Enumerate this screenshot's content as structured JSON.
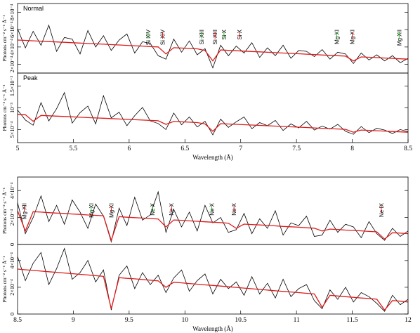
{
  "chart_data": [
    {
      "type": "line",
      "label": "Normal",
      "label_color": "#2323c8",
      "ylabel": "Photons cm⁻² s⁻¹ Å⁻¹",
      "xlim": [
        5,
        8.5
      ],
      "ylim": [
        0.0001,
        0.0009
      ],
      "yticks": [
        {
          "value": 0.0002,
          "label": "2×10⁻⁴"
        },
        {
          "value": 0.0004,
          "label": "4×10⁻⁴"
        },
        {
          "value": 0.0006,
          "label": "6×10⁻⁴"
        },
        {
          "value": 0.0008,
          "label": "8×10⁻⁴"
        }
      ],
      "x": [
        5,
        5.07,
        5.14,
        5.21,
        5.28,
        5.35,
        5.42,
        5.49,
        5.56,
        5.63,
        5.7,
        5.77,
        5.84,
        5.91,
        5.98,
        6.05,
        6.12,
        6.19,
        6.26,
        6.33,
        6.4,
        6.47,
        6.54,
        6.61,
        6.68,
        6.75,
        6.82,
        6.89,
        6.96,
        7.03,
        7.1,
        7.17,
        7.24,
        7.31,
        7.38,
        7.45,
        7.52,
        7.59,
        7.66,
        7.73,
        7.8,
        7.87,
        7.94,
        8.01,
        8.08,
        8.15,
        8.22,
        8.29,
        8.36,
        8.43,
        8.5
      ],
      "series": [
        {
          "color": "#000000",
          "values": [
            0.00061,
            0.00039,
            0.00058,
            0.00042,
            0.00065,
            0.00035,
            0.00051,
            0.00049,
            0.00032,
            0.00059,
            0.0004,
            0.00053,
            0.00036,
            0.00048,
            0.00055,
            0.00033,
            0.00046,
            0.00044,
            0.0003,
            0.00026,
            0.00049,
            0.00034,
            0.00047,
            0.00031,
            0.00038,
            0.00016,
            0.00042,
            0.0003,
            0.00041,
            0.00033,
            0.00045,
            0.00028,
            0.00039,
            0.0003,
            0.00042,
            0.00027,
            0.00036,
            0.00035,
            0.00029,
            0.00037,
            0.00026,
            0.00034,
            0.00032,
            0.00021,
            0.00033,
            0.00025,
            0.00031,
            0.00024,
            0.0003,
            0.00022,
            0.00027
          ]
        },
        {
          "color": "#e01a1a",
          "values": [
            0.00048,
            0.000476,
            0.000471,
            0.000467,
            0.000462,
            0.000458,
            0.000454,
            0.000449,
            0.000445,
            0.00044,
            0.000436,
            0.000432,
            0.000427,
            0.000423,
            0.000418,
            0.000414,
            0.00041,
            0.000405,
            0.000401,
            0.00032,
            0.000392,
            0.000388,
            0.000383,
            0.000379,
            0.00036,
            0.00024,
            0.000366,
            0.000361,
            0.000357,
            0.000352,
            0.000348,
            0.000344,
            0.000339,
            0.000335,
            0.00033,
            0.000326,
            0.000322,
            0.000317,
            0.000313,
            0.000308,
            0.000304,
            0.0003,
            0.000295,
            0.00024,
            0.000286,
            0.000282,
            0.000278,
            0.000273,
            0.000269,
            0.000264,
            0.00026
          ]
        }
      ],
      "annotations": [
        {
          "text": "Si XIV",
          "x": 6.17,
          "color": "#22c022"
        },
        {
          "text": "Si XIV",
          "x": 6.3,
          "color": "#e01a1a"
        },
        {
          "text": "Si XIII",
          "x": 6.65,
          "color": "#22c022"
        },
        {
          "text": "Si XIII",
          "x": 6.77,
          "color": "#e01a1a"
        },
        {
          "text": "Si X",
          "x": 6.85,
          "color": "#22c022"
        },
        {
          "text": "Si X",
          "x": 6.99,
          "color": "#e01a1a"
        },
        {
          "text": "Mg XI",
          "x": 7.86,
          "color": "#22c022"
        },
        {
          "text": "Mg XI",
          "x": 8.0,
          "color": "#e01a1a"
        },
        {
          "text": "Mg XII",
          "x": 8.42,
          "color": "#22c022"
        }
      ]
    },
    {
      "type": "line",
      "label": "Peak",
      "label_color": "#2323c8",
      "ylabel": "Photons cm⁻² s⁻¹ Å⁻¹",
      "xlabel": "Wavelength (Å)",
      "xlim": [
        5,
        8.5
      ],
      "ylim": [
        0.0002,
        0.0018
      ],
      "xticks": [
        5,
        5.5,
        6,
        6.5,
        7,
        7.5,
        8,
        8.5
      ],
      "yticks": [
        {
          "value": 0.0005,
          "label": "5×10⁻⁴"
        },
        {
          "value": 0.001,
          "label": "10⁻³"
        },
        {
          "value": 0.0015,
          "label": "1.5×10⁻³"
        }
      ],
      "x": [
        5,
        5.07,
        5.14,
        5.21,
        5.28,
        5.35,
        5.42,
        5.49,
        5.56,
        5.63,
        5.7,
        5.77,
        5.84,
        5.91,
        5.98,
        6.05,
        6.12,
        6.19,
        6.26,
        6.33,
        6.4,
        6.47,
        6.54,
        6.61,
        6.68,
        6.75,
        6.82,
        6.89,
        6.96,
        7.03,
        7.1,
        7.17,
        7.24,
        7.31,
        7.38,
        7.45,
        7.52,
        7.59,
        7.66,
        7.73,
        7.8,
        7.87,
        7.94,
        8.01,
        8.08,
        8.15,
        8.22,
        8.29,
        8.36,
        8.43,
        8.5
      ],
      "series": [
        {
          "color": "#000000",
          "values": [
            0.00095,
            0.00072,
            0.0006,
            0.00112,
            0.0007,
            0.00098,
            0.00135,
            0.00065,
            0.00089,
            0.00104,
            0.00063,
            0.00128,
            0.00077,
            0.0009,
            0.00059,
            0.00082,
            0.00101,
            0.0007,
            0.00064,
            0.0005,
            0.00088,
            0.00061,
            0.00079,
            0.00056,
            0.00069,
            0.00038,
            0.00074,
            0.00055,
            0.00068,
            0.00079,
            0.00052,
            0.00066,
            0.00059,
            0.00071,
            0.00048,
            0.00063,
            0.00054,
            0.00069,
            0.00049,
            0.00058,
            0.00051,
            0.00062,
            0.00046,
            0.00039,
            0.00057,
            0.00043,
            0.00053,
            0.00049,
            0.00041,
            0.0005,
            0.00045
          ]
        },
        {
          "color": "#e01a1a",
          "values": [
            0.00085,
            0.000842,
            0.00069,
            0.000825,
            0.000817,
            0.000809,
            0.000801,
            0.000793,
            0.000784,
            0.000776,
            0.000768,
            0.00076,
            0.000752,
            0.000743,
            0.000735,
            0.000727,
            0.000719,
            0.000711,
            0.000702,
            0.00062,
            0.000686,
            0.000678,
            0.00067,
            0.000661,
            0.00063,
            0.00046,
            0.000637,
            0.000629,
            0.00062,
            0.000612,
            0.000604,
            0.000596,
            0.000588,
            0.000579,
            0.000571,
            0.000563,
            0.000555,
            0.000547,
            0.000538,
            0.00053,
            0.000522,
            0.000514,
            0.000506,
            0.00044,
            0.000489,
            0.000481,
            0.000473,
            0.000465,
            0.000456,
            0.000448,
            0.00044
          ]
        }
      ]
    },
    {
      "type": "line",
      "ylabel": "Photons cm⁻² s⁻¹ Å⁻¹",
      "xlim": [
        8.5,
        12
      ],
      "ylim": [
        0,
        0.0005
      ],
      "yticks": [
        0,
        {
          "value": 0.0002,
          "label": "2×10⁻⁴"
        },
        {
          "value": 0.0004,
          "label": "4×10⁻⁴"
        }
      ],
      "x": [
        8.5,
        8.57,
        8.64,
        8.71,
        8.78,
        8.85,
        8.92,
        8.99,
        9.06,
        9.13,
        9.2,
        9.27,
        9.34,
        9.41,
        9.48,
        9.55,
        9.62,
        9.69,
        9.76,
        9.83,
        9.9,
        9.97,
        10.04,
        10.11,
        10.18,
        10.25,
        10.32,
        10.39,
        10.46,
        10.53,
        10.6,
        10.67,
        10.74,
        10.81,
        10.88,
        10.95,
        11.02,
        11.09,
        11.16,
        11.23,
        11.3,
        11.37,
        11.44,
        11.51,
        11.58,
        11.65,
        11.72,
        11.79,
        11.86,
        11.93,
        12
      ],
      "series": [
        {
          "color": "#000000",
          "values": [
            0.00031,
            8e-05,
            0.0002,
            0.00036,
            0.00017,
            0.00029,
            0.00015,
            0.00033,
            0.00024,
            0.00012,
            0.0003,
            0.00021,
            2e-05,
            0.00027,
            0.00014,
            0.00035,
            0.00018,
            0.00022,
            0.00039,
            9e-05,
            0.00026,
            0.00013,
            0.00024,
            0.0001,
            0.00029,
            0.00016,
            0.0002,
            9e-05,
            0.00011,
            0.00023,
            8e-05,
            0.00019,
            0.00012,
            0.00025,
            7e-05,
            0.00016,
            0.00014,
            0.00021,
            6e-05,
            7e-05,
            0.00018,
            9e-05,
            0.00015,
            0.00013,
            5e-05,
            0.00017,
            8e-05,
            3e-05,
            0.00012,
            6e-05,
            0.0001
          ]
        },
        {
          "color": "#e01a1a",
          "values": [
            0.00025,
            0.0001,
            0.000243,
            0.00024,
            0.000236,
            0.000233,
            0.00023,
            0.000226,
            0.000223,
            0.000219,
            0.000216,
            0.000213,
            3e-05,
            0.000206,
            0.000202,
            0.000199,
            0.000196,
            0.000192,
            0.000189,
            0.00013,
            0.000182,
            0.000179,
            0.000175,
            0.000172,
            0.000168,
            0.000165,
            0.000162,
            0.000158,
            0.00012,
            0.000151,
            0.000148,
            0.000145,
            0.000141,
            0.000138,
            0.000134,
            0.000131,
            0.000128,
            0.000124,
            0.000121,
            0.0001,
            0.000114,
            0.000111,
            0.000107,
            0.000104,
            0.000101,
            9.7e-05,
            9.4e-05,
            4e-05,
            8.7e-05,
            8.4e-05,
            8e-05
          ]
        }
      ],
      "annotations": [
        {
          "text": "Mg XII",
          "x": 8.56,
          "color": "#e01a1a"
        },
        {
          "text": "Mg XI",
          "x": 9.16,
          "color": "#22c022"
        },
        {
          "text": "Mg XI",
          "x": 9.34,
          "color": "#e01a1a"
        },
        {
          "text": "Ne X",
          "x": 9.71,
          "color": "#22c022"
        },
        {
          "text": "Ne X",
          "x": 9.88,
          "color": "#e01a1a"
        },
        {
          "text": "Ne X",
          "x": 10.24,
          "color": "#22c022"
        },
        {
          "text": "Ne X",
          "x": 10.44,
          "color": "#e01a1a"
        },
        {
          "text": "Ne IX",
          "x": 11.76,
          "color": "#e01a1a"
        }
      ]
    },
    {
      "type": "line",
      "ylabel": "Photons cm⁻² s⁻¹ Å⁻¹",
      "xlabel": "Wavelength (Å)",
      "xlim": [
        8.5,
        12
      ],
      "ylim": [
        0,
        0.00052
      ],
      "xticks": [
        8.5,
        9,
        9.5,
        10,
        10.5,
        11,
        11.5,
        12
      ],
      "yticks": [
        0,
        {
          "value": 0.0002,
          "label": "2×10⁻⁴"
        },
        {
          "value": 0.0004,
          "label": "4×10⁻⁴"
        }
      ],
      "x": [
        8.5,
        8.57,
        8.64,
        8.71,
        8.78,
        8.85,
        8.92,
        8.99,
        9.06,
        9.13,
        9.2,
        9.27,
        9.34,
        9.41,
        9.48,
        9.55,
        9.62,
        9.69,
        9.76,
        9.83,
        9.9,
        9.97,
        10.04,
        10.11,
        10.18,
        10.25,
        10.32,
        10.39,
        10.46,
        10.53,
        10.6,
        10.67,
        10.74,
        10.81,
        10.88,
        10.95,
        11.02,
        11.09,
        11.16,
        11.23,
        11.3,
        11.37,
        11.44,
        11.51,
        11.58,
        11.65,
        11.72,
        11.79,
        11.86,
        11.93,
        12
      ],
      "series": [
        {
          "color": "#000000",
          "values": [
            0.00043,
            0.00025,
            0.00038,
            0.00046,
            0.00022,
            0.00034,
            0.00049,
            0.00026,
            0.00031,
            0.0004,
            0.00024,
            0.00033,
            3e-05,
            0.00029,
            0.00036,
            0.00019,
            0.00031,
            0.00022,
            0.00029,
            0.00016,
            0.00027,
            0.00033,
            0.00017,
            0.00025,
            0.0003,
            0.00015,
            0.00026,
            0.00019,
            0.00024,
            0.00014,
            0.00028,
            0.00015,
            0.00023,
            0.00012,
            0.00026,
            0.00013,
            0.00019,
            0.00022,
            0.0001,
            4e-05,
            0.00018,
            0.00011,
            0.0002,
            9e-05,
            0.00016,
            0.00013,
            8e-05,
            2e-05,
            0.00014,
            7e-05,
            0.00011
          ]
        },
        {
          "color": "#e01a1a",
          "values": [
            0.000336,
            0.000331,
            0.000326,
            0.000321,
            0.000316,
            0.000312,
            0.000307,
            0.000302,
            0.000297,
            0.000292,
            0.000287,
            0.000282,
            4e-05,
            0.000272,
            0.000267,
            0.000263,
            0.000258,
            0.000253,
            0.000248,
            0.0002,
            0.000238,
            0.000233,
            0.000228,
            0.000223,
            0.000218,
            0.000214,
            0.000209,
            0.000204,
            0.000199,
            0.000194,
            0.000189,
            0.000184,
            0.000179,
            0.000174,
            0.000169,
            0.000165,
            0.00016,
            0.000155,
            0.00015,
            5e-05,
            0.00014,
            0.000135,
            0.00013,
            0.000125,
            0.00012,
            0.000116,
            0.000111,
            3e-05,
            0.000101,
            9.6e-05,
            9e-05
          ]
        }
      ]
    }
  ]
}
